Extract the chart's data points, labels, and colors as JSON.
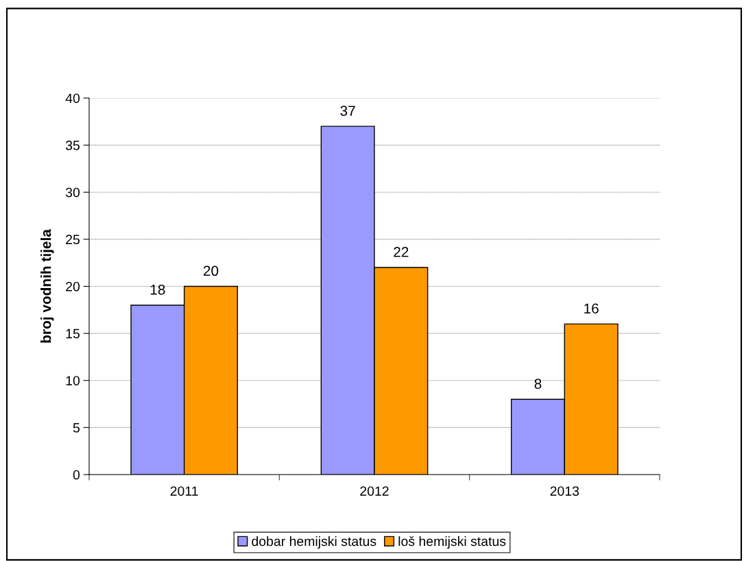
{
  "chart_data": {
    "type": "bar",
    "ylabel": "broj vodnih tijela",
    "categories": [
      "2011",
      "2012",
      "2013"
    ],
    "series": [
      {
        "name": "dobar hemijski status",
        "color": "#9999ff",
        "values": [
          18,
          37,
          8
        ]
      },
      {
        "name": "loš hemijski status",
        "color": "#ff9900",
        "values": [
          20,
          22,
          16
        ]
      }
    ],
    "ylim": [
      0,
      40
    ],
    "yticks": [
      0,
      5,
      10,
      15,
      20,
      25,
      30,
      35,
      40
    ],
    "grid": "y",
    "legend": "bottom",
    "data_labels": true
  }
}
